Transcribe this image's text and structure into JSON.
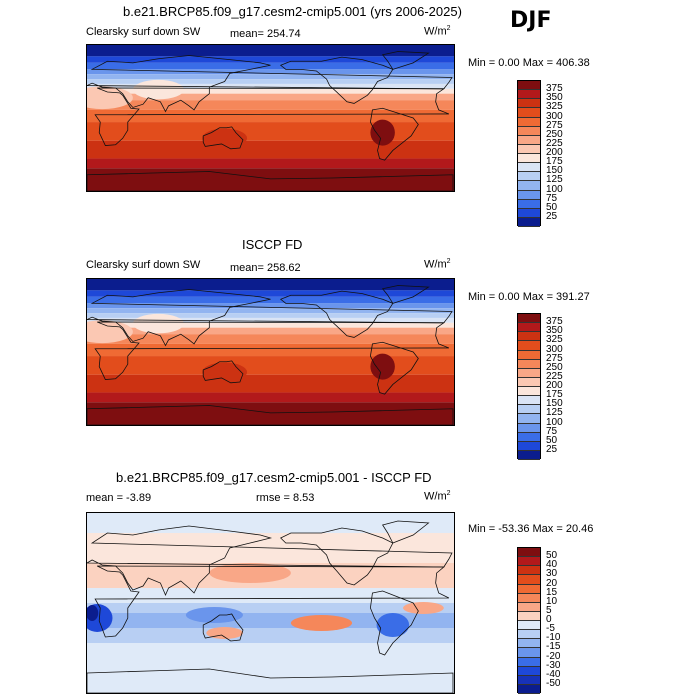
{
  "season": "DJF",
  "panels": [
    {
      "title": "b.e21.BRCP85.f09_g17.cesm2-cmip5.001 (yrs 2006-2025)",
      "field_label": "Clearsky surf down SW",
      "stat1": "mean= 254.74",
      "stat2": "",
      "units_base": "W/m",
      "units_exp": "2",
      "minmax": "Min =    0.00 Max = 406.38",
      "colorbar_labels": [
        "375",
        "350",
        "325",
        "300",
        "275",
        "250",
        "225",
        "200",
        "175",
        "150",
        "125",
        "100",
        "75",
        "50",
        "25"
      ],
      "colorbar_colors": [
        "#7e0e10",
        "#b2191b",
        "#cc3212",
        "#e24d1c",
        "#ef6a34",
        "#f5875a",
        "#f9a787",
        "#fbc8b3",
        "#fbe6dc",
        "#dae4f5",
        "#b8cff3",
        "#92b4f0",
        "#6a95ec",
        "#3a6de7",
        "#1e48d8",
        "#0b1d8e"
      ],
      "map_type": "sw"
    },
    {
      "title": "ISCCP FD",
      "field_label": "Clearsky surf down SW",
      "stat1": "mean= 258.62",
      "stat2": "",
      "units_base": "W/m",
      "units_exp": "2",
      "minmax": "Min =    0.00 Max = 391.27",
      "colorbar_labels": [
        "375",
        "350",
        "325",
        "300",
        "275",
        "250",
        "225",
        "200",
        "175",
        "150",
        "125",
        "100",
        "75",
        "50",
        "25"
      ],
      "colorbar_colors": [
        "#7e0e10",
        "#b2191b",
        "#cc3212",
        "#e24d1c",
        "#ef6a34",
        "#f5875a",
        "#f9a787",
        "#fbc8b3",
        "#fbe6dc",
        "#dae4f5",
        "#b8cff3",
        "#92b4f0",
        "#6a95ec",
        "#3a6de7",
        "#1e48d8",
        "#0b1d8e"
      ],
      "map_type": "sw"
    },
    {
      "title": "b.e21.BRCP85.f09_g17.cesm2-cmip5.001 - ISCCP FD",
      "field_label": "",
      "stat1": "mean =   -3.89",
      "stat2": "rmse =    8.53",
      "units_base": "W/m",
      "units_exp": "2",
      "minmax": "Min = -53.36 Max =  20.46",
      "colorbar_labels": [
        "50",
        "40",
        "30",
        "20",
        "15",
        "10",
        "5",
        "0",
        "-5",
        "-10",
        "-15",
        "-20",
        "-30",
        "-40",
        "-50"
      ],
      "colorbar_colors": [
        "#7e0e10",
        "#b2191b",
        "#cc3212",
        "#e24d1c",
        "#ef6a34",
        "#f5875a",
        "#f9a787",
        "#fbd2c0",
        "#dfeaf8",
        "#b8cff3",
        "#92b4f0",
        "#6a95ec",
        "#3a6de7",
        "#1e48d8",
        "#1732b8",
        "#0b1d8e"
      ],
      "map_type": "diff"
    }
  ]
}
